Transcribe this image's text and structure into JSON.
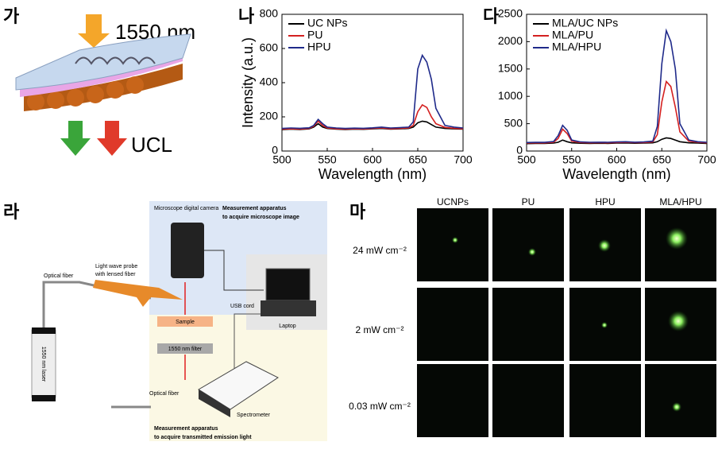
{
  "panels": {
    "a": {
      "label": "가",
      "excitation": "1550 nm",
      "emission": "UCL"
    },
    "d": {
      "label": "라",
      "camera": "Microscope digital camera",
      "apparatus_top": "Measurement apparatus",
      "apparatus_top_sub": "to acquire microscope image",
      "fiber_top": "Optical fiber",
      "probe": "Light wave probe",
      "probe_sub": "with lensed fiber",
      "usb": "USB cord",
      "sample": "Sample",
      "filter": "1550 nm filter",
      "laptop": "Laptop",
      "fiber_bottom": "Optical fiber",
      "spectrometer": "Spectrometer",
      "apparatus_bottom": "Measurement apparatus",
      "apparatus_bottom_sub": "to acquire transmitted emission light",
      "laser": "1550 nm laser"
    },
    "e": {
      "label": "마",
      "columns": [
        "UCNPs",
        "PU",
        "HPU",
        "MLA/HPU"
      ],
      "rows": [
        "24 mW cm⁻²",
        "2 mW cm⁻²",
        "0.03 mW cm⁻²"
      ]
    }
  },
  "chart_data": [
    {
      "type": "line",
      "panel_label": "나",
      "x_label": "Wavelength (nm)",
      "y_label": "Intensity (a.u.)",
      "x": [
        500,
        510,
        520,
        530,
        535,
        540,
        545,
        550,
        560,
        570,
        580,
        590,
        600,
        610,
        620,
        630,
        640,
        645,
        650,
        655,
        660,
        665,
        670,
        680,
        690,
        700
      ],
      "series": [
        {
          "name": "UC NPs",
          "color": "#000000",
          "values": [
            125,
            128,
            126,
            130,
            140,
            160,
            140,
            132,
            128,
            126,
            128,
            127,
            130,
            132,
            128,
            130,
            132,
            140,
            165,
            175,
            170,
            155,
            140,
            132,
            130,
            128
          ]
        },
        {
          "name": "PU",
          "color": "#d42020",
          "values": [
            128,
            130,
            128,
            132,
            145,
            175,
            150,
            135,
            130,
            128,
            130,
            129,
            132,
            135,
            130,
            132,
            135,
            150,
            230,
            270,
            255,
            200,
            160,
            138,
            133,
            130
          ]
        },
        {
          "name": "HPU",
          "color": "#1f2a8a",
          "values": [
            132,
            135,
            133,
            136,
            150,
            185,
            160,
            140,
            135,
            132,
            134,
            133,
            136,
            140,
            135,
            137,
            140,
            170,
            480,
            560,
            520,
            420,
            250,
            150,
            140,
            135
          ]
        }
      ],
      "xlim": [
        500,
        700
      ],
      "xticks": [
        500,
        550,
        600,
        650,
        700
      ],
      "ylim": [
        0,
        800
      ],
      "yticks": [
        0,
        200,
        400,
        600,
        800
      ]
    },
    {
      "type": "line",
      "panel_label": "다",
      "x_label": "Wavelength (nm)",
      "x": [
        500,
        510,
        520,
        530,
        535,
        540,
        545,
        550,
        560,
        570,
        580,
        590,
        600,
        610,
        620,
        630,
        640,
        645,
        650,
        655,
        660,
        665,
        670,
        680,
        690,
        700
      ],
      "series": [
        {
          "name": "MLA/UC NPs",
          "color": "#000000",
          "values": [
            135,
            140,
            138,
            145,
            160,
            200,
            170,
            150,
            142,
            140,
            142,
            140,
            145,
            148,
            142,
            145,
            150,
            170,
            215,
            240,
            230,
            200,
            170,
            150,
            145,
            140
          ]
        },
        {
          "name": "MLA/PU",
          "color": "#d42020",
          "values": [
            145,
            150,
            148,
            160,
            230,
            400,
            320,
            180,
            155,
            150,
            152,
            150,
            155,
            160,
            152,
            155,
            165,
            300,
            900,
            1270,
            1180,
            800,
            350,
            180,
            160,
            150
          ]
        },
        {
          "name": "MLA/HPU",
          "color": "#1f2a8a",
          "values": [
            155,
            160,
            158,
            175,
            280,
            470,
            380,
            200,
            165,
            160,
            162,
            160,
            165,
            170,
            162,
            165,
            180,
            450,
            1600,
            2200,
            2000,
            1500,
            500,
            200,
            170,
            160
          ]
        }
      ],
      "xlim": [
        500,
        700
      ],
      "xticks": [
        500,
        550,
        600,
        650,
        700
      ],
      "ylim": [
        0,
        2500
      ],
      "yticks": [
        0,
        500,
        1000,
        1500,
        2000,
        2500
      ]
    }
  ]
}
